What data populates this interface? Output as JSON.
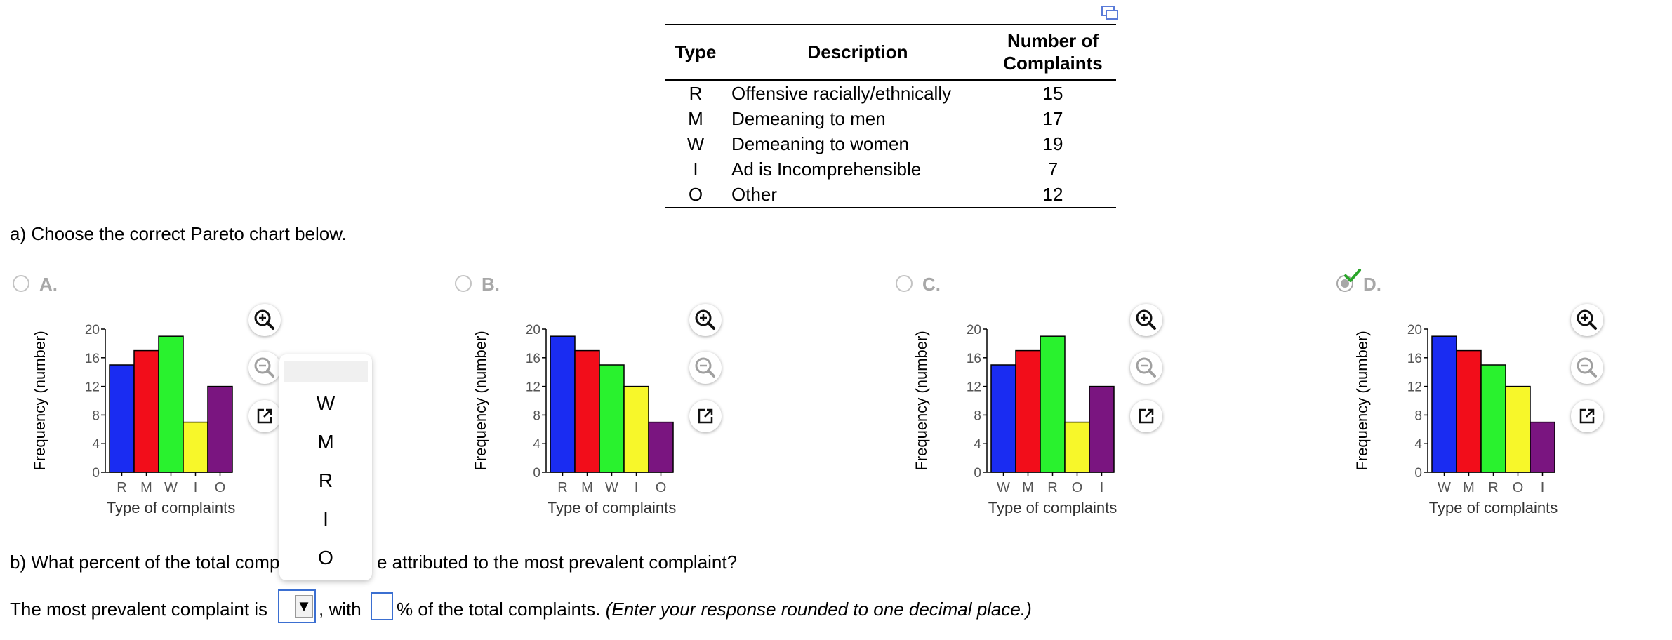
{
  "table": {
    "headers": {
      "type": "Type",
      "description": "Description",
      "count_line1": "Number of",
      "count_line2": "Complaints"
    },
    "rows": [
      {
        "type": "R",
        "description": "Offensive racially/ethnically",
        "count": "15"
      },
      {
        "type": "M",
        "description": "Demeaning to men",
        "count": "17"
      },
      {
        "type": "W",
        "description": "Demeaning to women",
        "count": "19"
      },
      {
        "type": "I",
        "description": "Ad is Incomprehensible",
        "count": "7"
      },
      {
        "type": "O",
        "description": "Other",
        "count": "12"
      }
    ]
  },
  "question_a": "a) Choose the correct Pareto chart below.",
  "question_b_before": "b) What percent of the total comp",
  "question_b_after": "e attributed to the most prevalent complaint?",
  "answer_line": {
    "prefix": "The most prevalent complaint is",
    "middle": ", with",
    "suffix": "% of the total complaints.",
    "hint": "(Enter your response rounded to one decimal place.)"
  },
  "select": {
    "arrow": "▼"
  },
  "dropdown": {
    "options": [
      "W",
      "M",
      "R",
      "I",
      "O"
    ]
  },
  "colors": {
    "blue": "#1a2cf2",
    "red": "#f20d1a",
    "green": "#29f22e",
    "yellow": "#f7f72a",
    "purple": "#7a1580",
    "check": "#2aa52a"
  },
  "options": [
    {
      "label": "A.",
      "selected": false
    },
    {
      "label": "B.",
      "selected": false
    },
    {
      "label": "C.",
      "selected": false
    },
    {
      "label": "D.",
      "selected": true
    }
  ],
  "chart_data": [
    {
      "type": "bar",
      "option": "A",
      "categories": [
        "R",
        "M",
        "W",
        "I",
        "O"
      ],
      "values": [
        15,
        17,
        19,
        7,
        12
      ],
      "colors": [
        "#1a2cf2",
        "#f20d1a",
        "#29f22e",
        "#f7f72a",
        "#7a1580"
      ],
      "xlabel": "Type of complaints",
      "ylabel": "Frequency (number)",
      "ylim": [
        0,
        20
      ],
      "yticks": [
        "0",
        "4",
        "8",
        "12",
        "16",
        "20"
      ]
    },
    {
      "type": "bar",
      "option": "B",
      "categories": [
        "R",
        "M",
        "W",
        "I",
        "O"
      ],
      "values": [
        19,
        17,
        15,
        12,
        7
      ],
      "colors": [
        "#1a2cf2",
        "#f20d1a",
        "#29f22e",
        "#f7f72a",
        "#7a1580"
      ],
      "xlabel": "Type of complaints",
      "ylabel": "Frequency (number)",
      "ylim": [
        0,
        20
      ],
      "yticks": [
        "0",
        "4",
        "8",
        "12",
        "16",
        "20"
      ]
    },
    {
      "type": "bar",
      "option": "C",
      "categories": [
        "W",
        "M",
        "R",
        "O",
        "I"
      ],
      "values": [
        15,
        17,
        19,
        7,
        12
      ],
      "colors": [
        "#1a2cf2",
        "#f20d1a",
        "#29f22e",
        "#f7f72a",
        "#7a1580"
      ],
      "xlabel": "Type of complaints",
      "ylabel": "Frequency (number)",
      "ylim": [
        0,
        20
      ],
      "yticks": [
        "0",
        "4",
        "8",
        "12",
        "16",
        "20"
      ]
    },
    {
      "type": "bar",
      "option": "D",
      "categories": [
        "W",
        "M",
        "R",
        "O",
        "I"
      ],
      "values": [
        19,
        17,
        15,
        12,
        7
      ],
      "colors": [
        "#1a2cf2",
        "#f20d1a",
        "#29f22e",
        "#f7f72a",
        "#7a1580"
      ],
      "xlabel": "Type of complaints",
      "ylabel": "Frequency (number)",
      "ylim": [
        0,
        20
      ],
      "yticks": [
        "0",
        "4",
        "8",
        "12",
        "16",
        "20"
      ]
    }
  ]
}
